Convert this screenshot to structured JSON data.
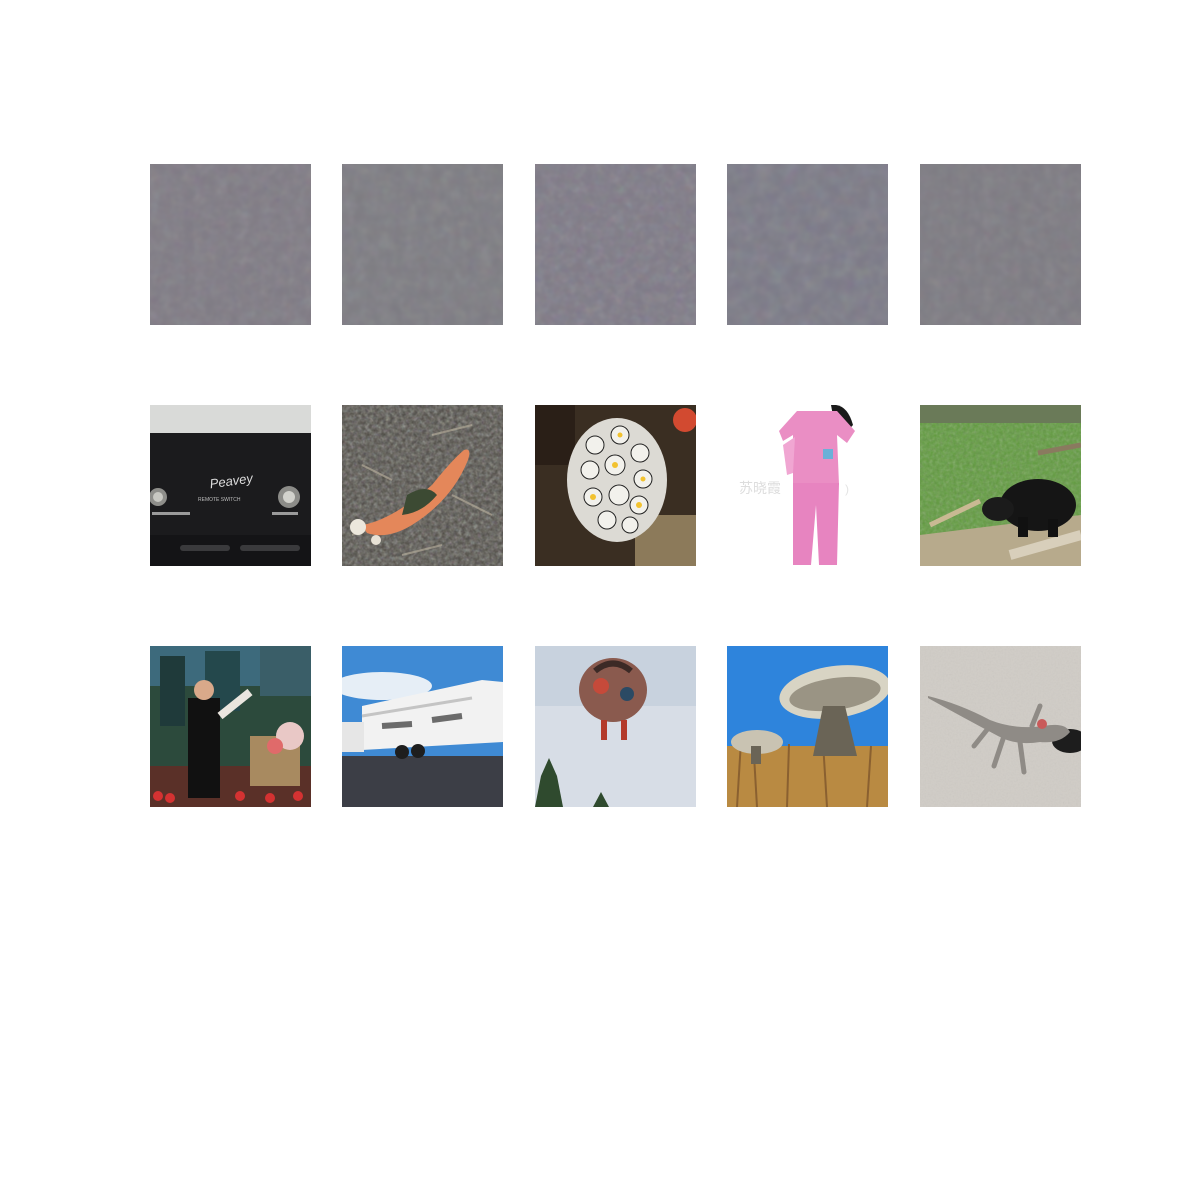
{
  "grid": {
    "rows": [
      {
        "tiles": [
          {
            "subject": "gray noise"
          },
          {
            "subject": "gray noise"
          },
          {
            "subject": "gray noise"
          },
          {
            "subject": "gray noise"
          },
          {
            "subject": "gray noise"
          }
        ]
      },
      {
        "tiles": [
          {
            "subject": "footswitch",
            "text_logo": "Peavey",
            "text_switch": "REMOTE SWITCH"
          },
          {
            "subject": "mushroom"
          },
          {
            "subject": "sea slug"
          },
          {
            "subject": "pajamas",
            "watermark": "苏晓霞"
          },
          {
            "subject": "black bear"
          }
        ]
      },
      {
        "tiles": [
          {
            "subject": "man presenting"
          },
          {
            "subject": "rv trailer"
          },
          {
            "subject": "hot air balloon"
          },
          {
            "subject": "radio telescope"
          },
          {
            "subject": "gecko"
          }
        ]
      }
    ]
  }
}
